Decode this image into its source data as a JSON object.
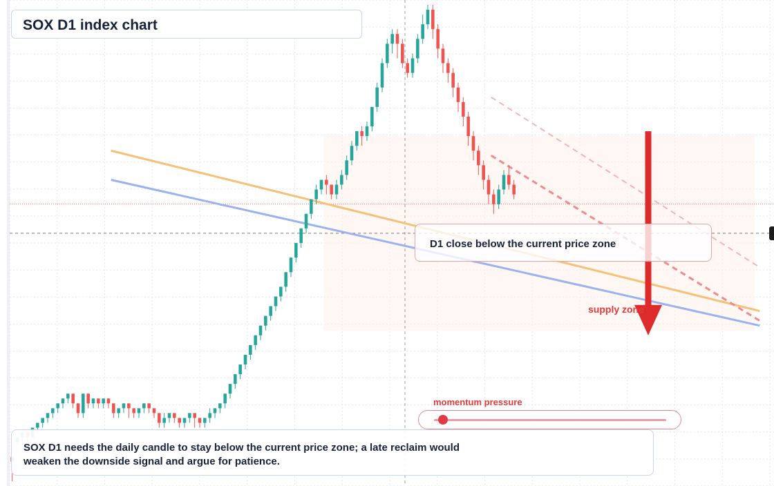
{
  "title": "SOX D1 index chart",
  "callout": "D1 close below the current price zone",
  "supply_label": "supply zone",
  "momentum_label": "momentum pressure",
  "momentum_value": 0.04,
  "note": "SOX D1 needs the daily candle to stay below the current price zone; a late reclaim would weaken the downside signal and argue for patience.",
  "colors": {
    "up": "#26a69a",
    "down": "#ef5350",
    "accent": "#df3b3b",
    "orange_line": "#f6c177",
    "blue_line": "#9bb2f0"
  },
  "chart_data": {
    "type": "candlestick",
    "title": "SOX D1 index chart",
    "x": {
      "start": 0,
      "end": 100,
      "unit": "bar"
    },
    "ylim": [
      0,
      100
    ],
    "grid": true,
    "current_price_level": 52,
    "reference_level": 58,
    "trend_lines": [
      {
        "name": "orange",
        "color": "#f6c177",
        "from": [
          20,
          69
        ],
        "to": [
          148,
          36
        ]
      },
      {
        "name": "blue",
        "color": "#9bb2f0",
        "from": [
          20,
          63
        ],
        "to": [
          148,
          33
        ]
      },
      {
        "name": "dashed",
        "color": "#ef8a90",
        "from": [
          95,
          68
        ],
        "to": [
          148,
          34
        ]
      },
      {
        "name": "dashed-light",
        "color": "#f4b3b6",
        "from": [
          95,
          80
        ],
        "to": [
          148,
          45
        ]
      }
    ],
    "arrow": {
      "from": [
        126,
        73
      ],
      "to": [
        126,
        31
      ]
    },
    "candles": [
      [
        6,
        5,
        1,
        6
      ],
      [
        9,
        10,
        8,
        10
      ],
      [
        10,
        11,
        9,
        11
      ],
      [
        11,
        10,
        9,
        11
      ],
      [
        10,
        12,
        10,
        12
      ],
      [
        12,
        13,
        11,
        13
      ],
      [
        13,
        14,
        12,
        14
      ],
      [
        14,
        15,
        13,
        15
      ],
      [
        15,
        16,
        14,
        16
      ],
      [
        16,
        17,
        15,
        17
      ],
      [
        17,
        18,
        16,
        18
      ],
      [
        18,
        19,
        17,
        19
      ],
      [
        19,
        17,
        16,
        19
      ],
      [
        17,
        15,
        14,
        17
      ],
      [
        15,
        19,
        14,
        19
      ],
      [
        19,
        17,
        16,
        19
      ],
      [
        17,
        18,
        16,
        18
      ],
      [
        18,
        17,
        16,
        18
      ],
      [
        17,
        18,
        16,
        18
      ],
      [
        18,
        17,
        16,
        18
      ],
      [
        17,
        15,
        14,
        17
      ],
      [
        15,
        16,
        14,
        16
      ],
      [
        16,
        17,
        15,
        17
      ],
      [
        17,
        16,
        14,
        17
      ],
      [
        16,
        15,
        14,
        16
      ],
      [
        15,
        16,
        14,
        16
      ],
      [
        16,
        17,
        15,
        17
      ],
      [
        17,
        16,
        15,
        17
      ],
      [
        16,
        15,
        14,
        16
      ],
      [
        15,
        13,
        12,
        15
      ],
      [
        13,
        14,
        12,
        15
      ],
      [
        14,
        15,
        13,
        15
      ],
      [
        15,
        14,
        13,
        15
      ],
      [
        14,
        13,
        12,
        14
      ],
      [
        13,
        14,
        12,
        14
      ],
      [
        14,
        15,
        13,
        15
      ],
      [
        15,
        14,
        12,
        15
      ],
      [
        14,
        13,
        12,
        14
      ],
      [
        13,
        14,
        12,
        14
      ],
      [
        14,
        15,
        13,
        16
      ],
      [
        15,
        16,
        14,
        16
      ],
      [
        16,
        17,
        15,
        17
      ],
      [
        17,
        19,
        16,
        19
      ],
      [
        19,
        21,
        18,
        21
      ],
      [
        21,
        23,
        20,
        23
      ],
      [
        23,
        25,
        22,
        25
      ],
      [
        25,
        27,
        24,
        27
      ],
      [
        27,
        29,
        26,
        29
      ],
      [
        29,
        31,
        28,
        31
      ],
      [
        31,
        33,
        30,
        33
      ],
      [
        33,
        35,
        32,
        35
      ],
      [
        35,
        37,
        34,
        37
      ],
      [
        37,
        39,
        36,
        39
      ],
      [
        39,
        41,
        38,
        41
      ],
      [
        41,
        44,
        40,
        44
      ],
      [
        44,
        47,
        43,
        47
      ],
      [
        47,
        50,
        46,
        50
      ],
      [
        50,
        53,
        49,
        53
      ],
      [
        53,
        56,
        52,
        56
      ],
      [
        56,
        59,
        55,
        59
      ],
      [
        59,
        61,
        58,
        62
      ],
      [
        61,
        63,
        60,
        63
      ],
      [
        63,
        62,
        60,
        64
      ],
      [
        62,
        60,
        59,
        62
      ],
      [
        60,
        62,
        59,
        63
      ],
      [
        62,
        64,
        61,
        65
      ],
      [
        64,
        67,
        63,
        68
      ],
      [
        67,
        70,
        66,
        71
      ],
      [
        70,
        73,
        69,
        73
      ],
      [
        73,
        72,
        70,
        74
      ],
      [
        72,
        74,
        71,
        75
      ],
      [
        74,
        78,
        73,
        78
      ],
      [
        78,
        82,
        77,
        83
      ],
      [
        82,
        87,
        81,
        88
      ],
      [
        87,
        91,
        86,
        92
      ],
      [
        91,
        93,
        89,
        94
      ],
      [
        93,
        91,
        88,
        94
      ],
      [
        91,
        87,
        86,
        92
      ],
      [
        87,
        85,
        84,
        88
      ],
      [
        85,
        88,
        84,
        89
      ],
      [
        88,
        92,
        87,
        93
      ],
      [
        92,
        95,
        91,
        97
      ],
      [
        95,
        98,
        94,
        99
      ],
      [
        98,
        94,
        92,
        99
      ],
      [
        94,
        90,
        88,
        95
      ],
      [
        90,
        87,
        85,
        91
      ],
      [
        87,
        85,
        83,
        88
      ],
      [
        85,
        82,
        80,
        86
      ],
      [
        82,
        79,
        77,
        83
      ],
      [
        79,
        76,
        74,
        80
      ],
      [
        76,
        72,
        70,
        77
      ],
      [
        72,
        69,
        67,
        73
      ],
      [
        69,
        66,
        64,
        70
      ],
      [
        66,
        63,
        61,
        67
      ],
      [
        63,
        60,
        58,
        64
      ],
      [
        60,
        58,
        56,
        61
      ],
      [
        58,
        61,
        57,
        62
      ],
      [
        61,
        64,
        60,
        65
      ],
      [
        64,
        62,
        61,
        66
      ],
      [
        62,
        60,
        59,
        63
      ]
    ]
  }
}
